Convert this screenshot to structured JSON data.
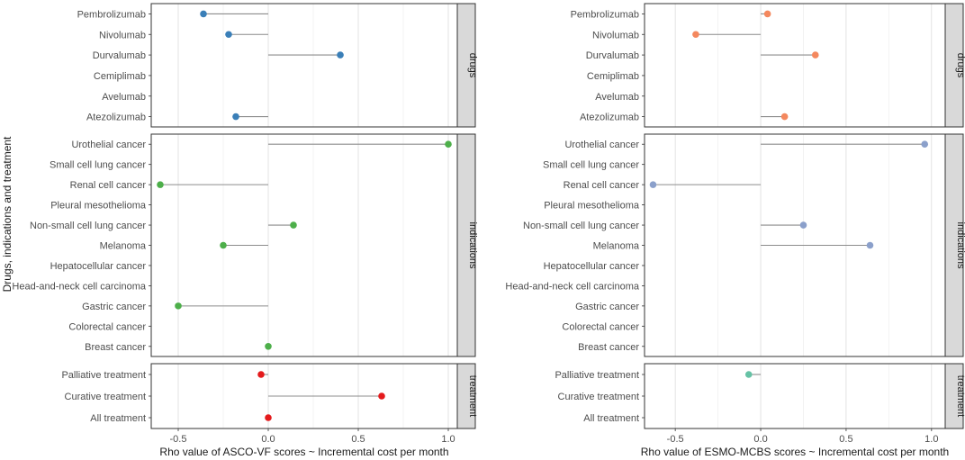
{
  "y_axis_title": "Drugs, indications and treatment",
  "chart_data": [
    {
      "type": "lollipop",
      "xlabel": "Rho value of ASCO-VF scores ~ Incremental cost per month",
      "xlim": [
        -0.65,
        1.05
      ],
      "xticks": [
        -0.5,
        0.0,
        0.5,
        1.0
      ],
      "xtick_labels": [
        "-0.5",
        "0.0",
        "0.5",
        "1.0"
      ],
      "grid": true,
      "facets": [
        {
          "strip": "drugs",
          "color": "#3a7fb8",
          "categories": [
            "Pembrolizumab",
            "Nivolumab",
            "Durvalumab",
            "Cemiplimab",
            "Avelumab",
            "Atezolizumab"
          ],
          "values": [
            -0.36,
            -0.22,
            0.4,
            null,
            null,
            -0.18
          ]
        },
        {
          "strip": "indications",
          "color": "#4daf4a",
          "categories": [
            "Urothelial cancer",
            "Small cell lung cancer",
            "Renal cell cancer",
            "Pleural mesothelioma",
            "Non-small cell lung cancer",
            "Melanoma",
            "Hepatocellular cancer",
            "Head-and-neck cell carcinoma",
            "Gastric cancer",
            "Colorectal cancer",
            "Breast cancer"
          ],
          "values": [
            1.0,
            null,
            -0.6,
            null,
            0.14,
            -0.25,
            null,
            null,
            -0.5,
            null,
            0.0
          ]
        },
        {
          "strip": "treatment",
          "color": "#e41a1c",
          "categories": [
            "Palliative treatment",
            "Curative treatment",
            "All treatment"
          ],
          "values": [
            -0.04,
            0.63,
            0.0
          ]
        }
      ]
    },
    {
      "type": "lollipop",
      "xlabel": "Rho value of ESMO-MCBS scores ~ Incremental cost per month",
      "xlim": [
        -0.68,
        1.08
      ],
      "xticks": [
        -0.5,
        0.0,
        0.5,
        1.0
      ],
      "xtick_labels": [
        "-0.5",
        "0.0",
        "0.5",
        "1.0"
      ],
      "grid": true,
      "facets": [
        {
          "strip": "drugs",
          "color": "#f4885e",
          "categories": [
            "Pembrolizumab",
            "Nivolumab",
            "Durvalumab",
            "Cemiplimab",
            "Avelumab",
            "Atezolizumab"
          ],
          "values": [
            0.04,
            -0.38,
            0.32,
            null,
            null,
            0.14
          ]
        },
        {
          "strip": "indications",
          "color": "#8ba0cb",
          "categories": [
            "Urothelial cancer",
            "Small cell lung cancer",
            "Renal cell cancer",
            "Pleural mesothelioma",
            "Non-small cell lung cancer",
            "Melanoma",
            "Hepatocellular cancer",
            "Head-and-neck cell carcinoma",
            "Gastric cancer",
            "Colorectal cancer",
            "Breast cancer"
          ],
          "values": [
            0.96,
            null,
            -0.63,
            null,
            0.25,
            0.64,
            null,
            null,
            null,
            null,
            null
          ]
        },
        {
          "strip": "treatment",
          "color": "#66c2a5",
          "categories": [
            "Palliative treatment",
            "Curative treatment",
            "All treatment"
          ],
          "values": [
            -0.07,
            null,
            null
          ]
        }
      ]
    }
  ]
}
